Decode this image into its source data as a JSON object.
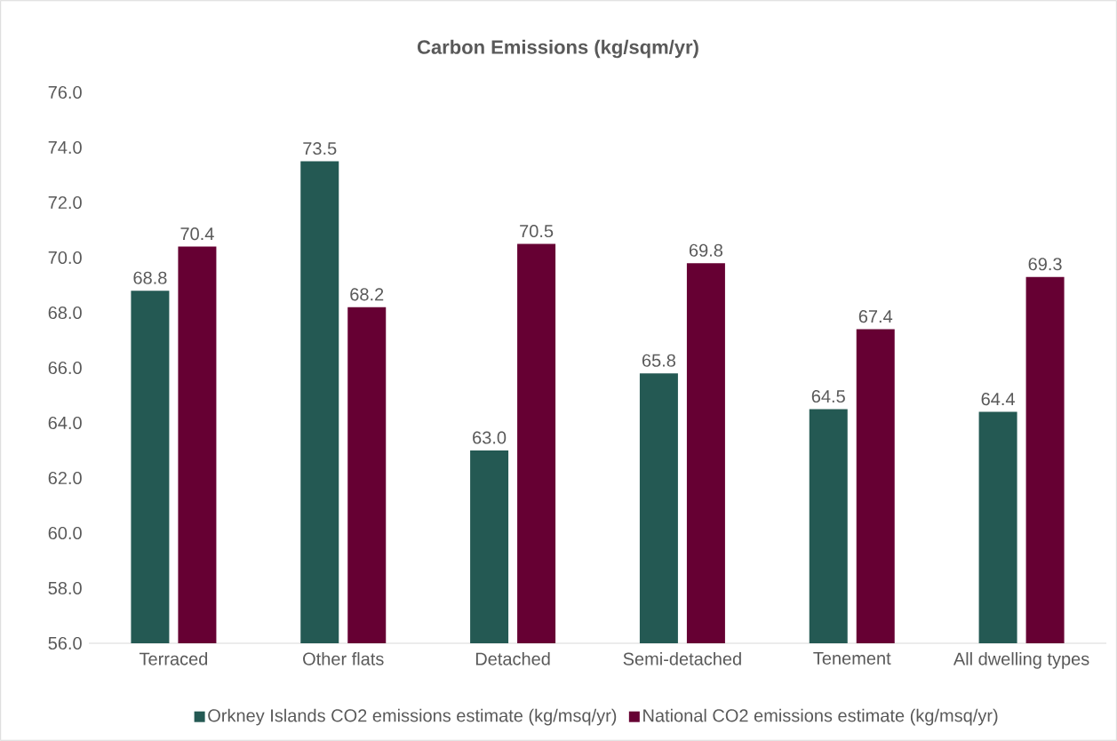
{
  "chart_data": {
    "type": "bar",
    "title": "Carbon Emissions (kg/sqm/yr)",
    "categories": [
      "Terraced",
      "Other flats",
      "Detached",
      "Semi-detached",
      "Tenement",
      "All dwelling types"
    ],
    "series": [
      {
        "name": "Orkney Islands CO2 emissions estimate (kg/msq/yr)",
        "color": "#245953",
        "values": [
          68.8,
          73.5,
          63.0,
          65.8,
          64.5,
          64.4
        ],
        "value_labels": [
          "68.8",
          "73.5",
          "63.0",
          "65.8",
          "64.5",
          "64.4"
        ]
      },
      {
        "name": "National CO2 emissions estimate (kg/msq/yr)",
        "color": "#660033",
        "values": [
          70.4,
          68.2,
          70.5,
          69.8,
          67.4,
          69.3
        ],
        "value_labels": [
          "70.4",
          "68.2",
          "70.5",
          "69.8",
          "67.4",
          "69.3"
        ]
      }
    ],
    "ylim": [
      56,
      76
    ],
    "yticks": [
      {
        "value": 56,
        "label": "56.0"
      },
      {
        "value": 58,
        "label": "58.0"
      },
      {
        "value": 60,
        "label": "60.0"
      },
      {
        "value": 62,
        "label": "62.0"
      },
      {
        "value": 64,
        "label": "64.0"
      },
      {
        "value": 66,
        "label": "66.0"
      },
      {
        "value": 68,
        "label": "68.0"
      },
      {
        "value": 70,
        "label": "70.0"
      },
      {
        "value": 72,
        "label": "72.0"
      },
      {
        "value": 74,
        "label": "74.0"
      },
      {
        "value": 76,
        "label": "76.0"
      }
    ],
    "legend": "bottom"
  }
}
